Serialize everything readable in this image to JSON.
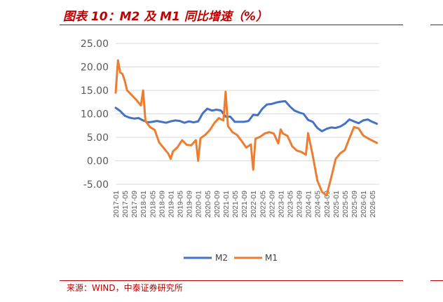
{
  "header": {
    "title": "图表 10：M2 及 M1 同比增速（%）"
  },
  "footer": {
    "source": "来源：WIND，中泰证券研究所"
  },
  "colors": {
    "accent": "#c00000",
    "m2": "#4472c4",
    "m1": "#ed7d31",
    "grid": "#d9d9d9",
    "axis_text": "#595959"
  },
  "chart_data": {
    "type": "line",
    "title": "图表 10：M2 及 M1 同比增速（%）",
    "xlabel": "",
    "ylabel": "",
    "ylim": [
      -5,
      25
    ],
    "yticks": [
      "25.00",
      "20.00",
      "15.00",
      "10.00",
      "5.00",
      "0.00",
      "-5.00"
    ],
    "xticks": [
      "2017-01",
      "2017-05",
      "2017-09",
      "2018-01",
      "2018-05",
      "2018-09",
      "2019-01",
      "2019-05",
      "2019-09",
      "2020-01",
      "2020-05",
      "2020-09",
      "2021-01",
      "2021-05",
      "2021-09",
      "2022-01",
      "2022-05",
      "2022-09",
      "2023-01",
      "2023-05",
      "2023-09",
      "2024-01",
      "2024-05",
      "2024-09",
      "2025-01",
      "2025-05",
      "2025-09",
      "2026-01",
      "2026-05"
    ],
    "grid": true,
    "legend": "bottom",
    "series": [
      {
        "name": "M2",
        "x": [
          "2017-01",
          "2017-03",
          "2017-05",
          "2017-07",
          "2017-09",
          "2017-11",
          "2018-01",
          "2018-03",
          "2018-05",
          "2018-07",
          "2018-09",
          "2018-11",
          "2019-01",
          "2019-03",
          "2019-05",
          "2019-07",
          "2019-09",
          "2019-11",
          "2020-01",
          "2020-03",
          "2020-05",
          "2020-07",
          "2020-09",
          "2020-11",
          "2021-01",
          "2021-03",
          "2021-05",
          "2021-07",
          "2021-09",
          "2021-11",
          "2022-01",
          "2022-03",
          "2022-05",
          "2022-07",
          "2022-09",
          "2022-11",
          "2023-01",
          "2023-03",
          "2023-05",
          "2023-07",
          "2023-09",
          "2023-11",
          "2024-01",
          "2024-03",
          "2024-05",
          "2024-07",
          "2024-09",
          "2024-11",
          "2025-01",
          "2025-03",
          "2025-05",
          "2025-07",
          "2025-09",
          "2025-11",
          "2026-01",
          "2026-03",
          "2026-05",
          "2026-07"
        ],
        "values": [
          11.3,
          10.6,
          9.6,
          9.2,
          9.0,
          9.1,
          8.6,
          8.2,
          8.3,
          8.5,
          8.3,
          8.1,
          8.4,
          8.6,
          8.5,
          8.1,
          8.4,
          8.2,
          8.4,
          10.1,
          11.1,
          10.7,
          10.9,
          10.7,
          9.4,
          9.4,
          8.3,
          8.3,
          8.3,
          8.5,
          9.8,
          9.7,
          11.1,
          12.0,
          12.1,
          12.4,
          12.6,
          12.7,
          11.6,
          10.7,
          10.3,
          10.0,
          8.7,
          8.3,
          7.0,
          6.3,
          6.8,
          7.1,
          7.0,
          7.3,
          7.9,
          8.8,
          8.4,
          8.0,
          8.6,
          8.8,
          8.3,
          7.9
        ]
      },
      {
        "name": "M1",
        "x": [
          "2017-01",
          "2017-02",
          "2017-03",
          "2017-04",
          "2017-05",
          "2017-06",
          "2017-08",
          "2017-10",
          "2017-12",
          "2018-01",
          "2018-02",
          "2018-04",
          "2018-06",
          "2018-08",
          "2018-10",
          "2018-12",
          "2019-01",
          "2019-02",
          "2019-04",
          "2019-06",
          "2019-08",
          "2019-10",
          "2019-12",
          "2020-01",
          "2020-02",
          "2020-04",
          "2020-06",
          "2020-08",
          "2020-10",
          "2020-12",
          "2021-01",
          "2021-02",
          "2021-04",
          "2021-06",
          "2021-08",
          "2021-10",
          "2021-12",
          "2022-01",
          "2022-02",
          "2022-04",
          "2022-06",
          "2022-08",
          "2022-10",
          "2022-12",
          "2023-01",
          "2023-02",
          "2023-04",
          "2023-06",
          "2023-08",
          "2023-10",
          "2023-12",
          "2024-01",
          "2024-03",
          "2024-05",
          "2024-07",
          "2024-09",
          "2024-11",
          "2025-01",
          "2025-03",
          "2025-05",
          "2025-07",
          "2025-09",
          "2025-11",
          "2026-01",
          "2026-03",
          "2026-05",
          "2026-07"
        ],
        "values": [
          14.5,
          21.4,
          18.8,
          18.5,
          17.0,
          15.0,
          14.0,
          13.0,
          11.8,
          15.0,
          8.5,
          7.2,
          6.6,
          3.9,
          2.7,
          1.5,
          0.4,
          2.0,
          2.9,
          4.4,
          3.4,
          3.3,
          4.4,
          0.0,
          4.8,
          5.5,
          6.5,
          8.0,
          9.1,
          8.6,
          14.7,
          7.4,
          6.1,
          5.5,
          4.2,
          2.8,
          3.5,
          -1.9,
          4.7,
          5.1,
          5.8,
          6.1,
          5.8,
          3.7,
          6.7,
          5.8,
          5.3,
          3.1,
          2.2,
          1.9,
          1.3,
          5.9,
          1.1,
          -4.2,
          -6.6,
          -7.4,
          -3.7,
          0.4,
          1.6,
          2.3,
          4.8,
          7.2,
          6.9,
          5.4,
          4.8,
          4.3,
          3.8
        ]
      }
    ]
  }
}
